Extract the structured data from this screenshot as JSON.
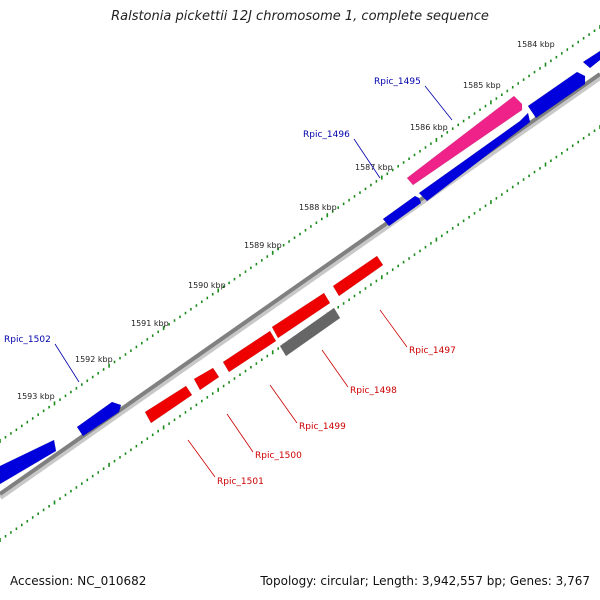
{
  "title": "Ralstonia pickettii 12J chromosome 1, complete sequence",
  "accession": "Accession: NC_010682",
  "summary": "Topology: circular; Length: 3,942,557 bp; Genes: 3,767",
  "colors": {
    "forward_gene": "#0000dd",
    "reverse_gene": "#ee0000",
    "highlight_gene": "#ee2288",
    "other_gene": "#666666",
    "backbone": "#808080",
    "tick": "#1a8a1a",
    "forward_label": "#0000aa",
    "reverse_label": "#cc0000"
  },
  "scale": {
    "labels": [
      "1584 kbp",
      "1585 kbp",
      "1586 kbp",
      "1587 kbp",
      "1588 kbp",
      "1589 kbp",
      "1590 kbp",
      "1591 kbp",
      "1592 kbp",
      "1593 kbp"
    ]
  },
  "genes": [
    {
      "id": "g1",
      "label": "",
      "strand": "+",
      "type": "forward"
    },
    {
      "id": "g2",
      "label": "",
      "strand": "+",
      "type": "forward"
    },
    {
      "id": "g3",
      "label": "Rpic_1495",
      "strand": "+",
      "type": "highlight"
    },
    {
      "id": "g4",
      "label": "Rpic_1496",
      "strand": "+",
      "type": "forward"
    },
    {
      "id": "g5",
      "label": "",
      "strand": "+",
      "type": "forward"
    },
    {
      "id": "g6",
      "label": "Rpic_1502",
      "strand": "+",
      "type": "forward"
    },
    {
      "id": "g7",
      "label": "",
      "strand": "+",
      "type": "forward"
    },
    {
      "id": "g8",
      "label": "Rpic_1497",
      "strand": "-",
      "type": "reverse"
    },
    {
      "id": "g9",
      "label": "",
      "strand": "-",
      "type": "reverse"
    },
    {
      "id": "g10",
      "label": "Rpic_1498",
      "strand": "-",
      "type": "other"
    },
    {
      "id": "g11",
      "label": "Rpic_1499",
      "strand": "-",
      "type": "reverse"
    },
    {
      "id": "g12",
      "label": "Rpic_1500",
      "strand": "-",
      "type": "reverse"
    },
    {
      "id": "g13",
      "label": "Rpic_1501",
      "strand": "-",
      "type": "reverse"
    }
  ]
}
